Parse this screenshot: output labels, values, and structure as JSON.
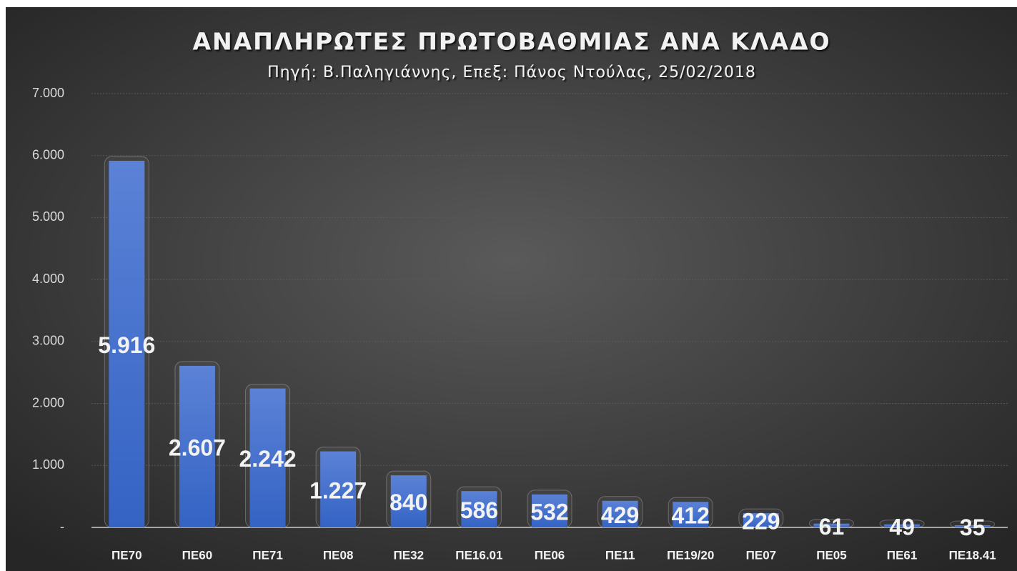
{
  "chart_data": {
    "type": "bar",
    "title": "ΑΝΑΠΛΗΡΩΤΕΣ ΠΡΩΤΟΒΑΘΜΙΑΣ ΑΝΑ ΚΛΑΔΟ",
    "subtitle": "Πηγή: Β.Παληγιάννης, Επεξ: Πάνος Ντούλας, 25/02/2018",
    "categories": [
      "ΠΕ70",
      "ΠΕ60",
      "ΠΕ71",
      "ΠΕ08",
      "ΠΕ32",
      "ΠΕ16.01",
      "ΠΕ06",
      "ΠΕ11",
      "ΠΕ19/20",
      "ΠΕ07",
      "ΠΕ05",
      "ΠΕ61",
      "ΠΕ18.41"
    ],
    "values": [
      5916,
      2607,
      2242,
      1227,
      840,
      586,
      532,
      429,
      412,
      229,
      61,
      49,
      35
    ],
    "value_labels": [
      "5.916",
      "2.607",
      "2.242",
      "1.227",
      "840",
      "586",
      "532",
      "429",
      "412",
      "229",
      "61",
      "49",
      "35"
    ],
    "color": "#4472c4",
    "ylim": [
      0,
      7000
    ],
    "yticks": [
      {
        "value": 0,
        "label": "-"
      },
      {
        "value": 1000,
        "label": "1.000"
      },
      {
        "value": 2000,
        "label": "2.000"
      },
      {
        "value": 3000,
        "label": "3.000"
      },
      {
        "value": 4000,
        "label": "4.000"
      },
      {
        "value": 5000,
        "label": "5.000"
      },
      {
        "value": 6000,
        "label": "6.000"
      },
      {
        "value": 7000,
        "label": "7.000"
      }
    ],
    "grid": true
  }
}
